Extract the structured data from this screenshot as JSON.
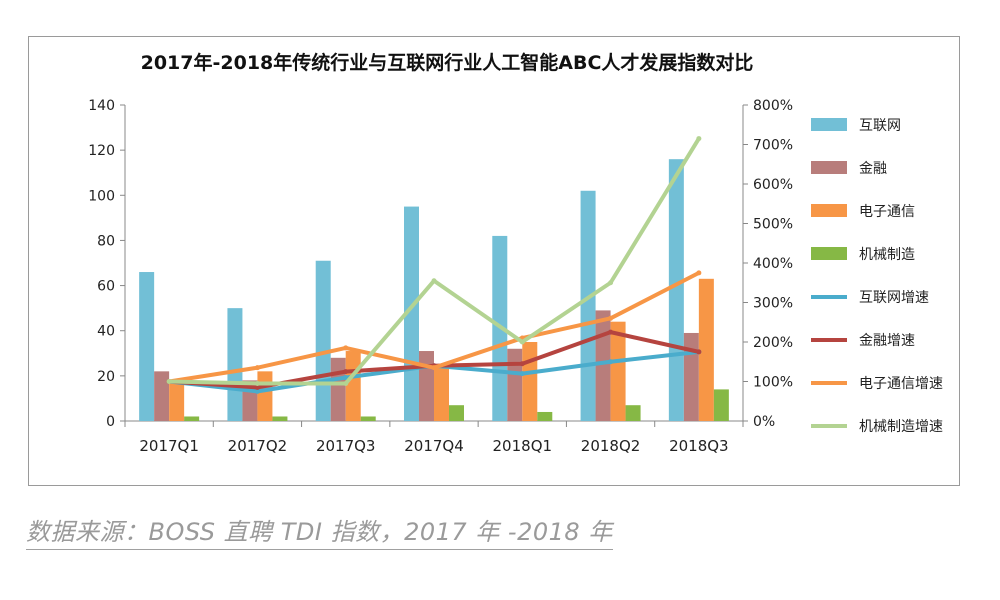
{
  "chart_data": {
    "type": "bar",
    "title": "2017年-2018年传统行业与互联网行业人工智能ABC人才发展指数对比",
    "categories": [
      "2017Q1",
      "2017Q2",
      "2017Q3",
      "2017Q4",
      "2018Q1",
      "2018Q2",
      "2018Q3"
    ],
    "y_left": {
      "min": 0,
      "max": 140,
      "step": 20,
      "ticks": [
        "0",
        "20",
        "40",
        "60",
        "80",
        "100",
        "120",
        "140"
      ]
    },
    "y_right": {
      "min": 0,
      "max": 800,
      "step": 100,
      "ticks": [
        "0%",
        "100%",
        "200%",
        "300%",
        "400%",
        "500%",
        "600%",
        "700%",
        "800%"
      ]
    },
    "bar_series": [
      {
        "name": "互联网",
        "color": "#72bfd6",
        "values": [
          66,
          50,
          71,
          95,
          82,
          102,
          116
        ]
      },
      {
        "name": "金融",
        "color": "#b87d7b",
        "values": [
          22,
          18,
          28,
          31,
          32,
          49,
          39
        ]
      },
      {
        "name": "电子通信",
        "color": "#f79646",
        "values": [
          17,
          22,
          31,
          25,
          35,
          44,
          63
        ]
      },
      {
        "name": "机械制造",
        "color": "#86b845",
        "values": [
          2,
          2,
          2,
          7,
          4,
          7,
          14
        ]
      }
    ],
    "line_series": [
      {
        "name": "互联网增速",
        "color": "#4aaccc",
        "values": [
          100,
          75,
          110,
          140,
          120,
          150,
          175
        ]
      },
      {
        "name": "金融增速",
        "color": "#b5443f",
        "values": [
          100,
          85,
          125,
          140,
          145,
          225,
          175
        ]
      },
      {
        "name": "电子通信增速",
        "color": "#f79646",
        "values": [
          100,
          135,
          185,
          135,
          210,
          260,
          375
        ]
      },
      {
        "name": "机械制造增速",
        "color": "#b3d392",
        "values": [
          100,
          95,
          95,
          355,
          200,
          350,
          715
        ]
      }
    ],
    "legend_position": "right"
  },
  "source_note": "数据来源：BOSS 直聘 TDI 指数，2017 年 -2018 年"
}
